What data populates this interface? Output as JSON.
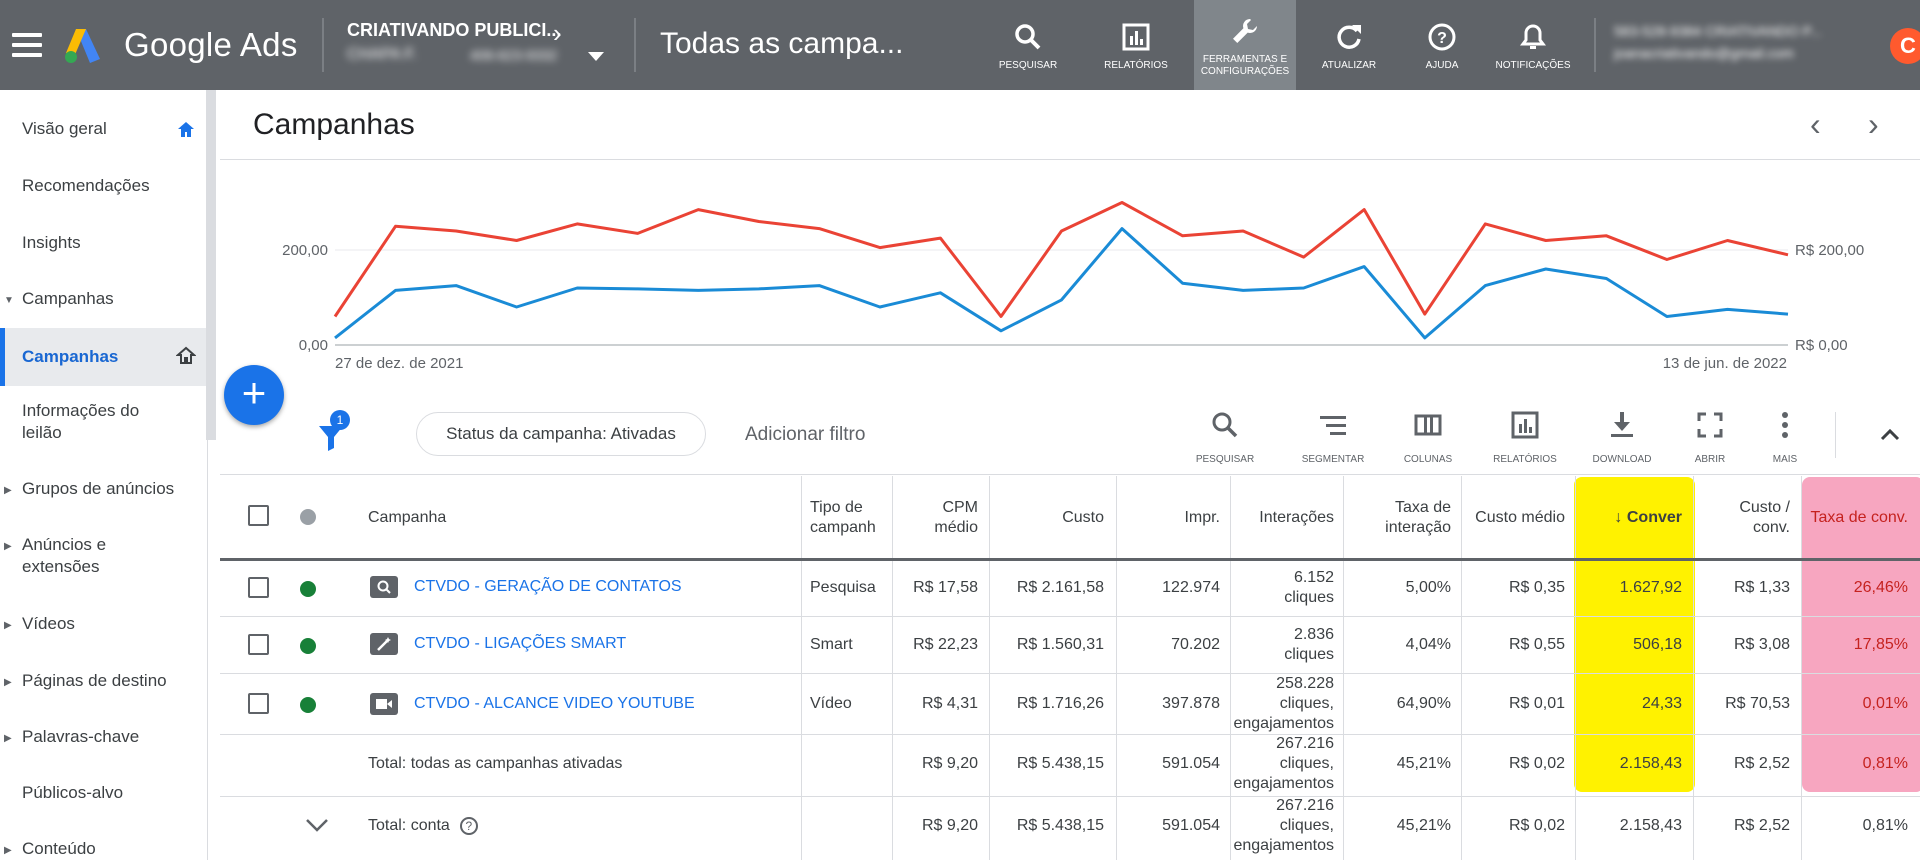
{
  "app": {
    "brand": "Google Ads",
    "page_heading": "Todas as campa..."
  },
  "account": {
    "name": "CRIATIVANDO PUBLICI...",
    "sub": "CHAPA F.",
    "sub_id": "406-623-9332"
  },
  "toolbar": [
    {
      "label": "PESQUISAR",
      "icon": "search-icon"
    },
    {
      "label": "RELATÓRIOS",
      "icon": "reports-icon"
    },
    {
      "label": "FERRAMENTAS E CONFIGURAÇÕES",
      "icon": "wrench-icon",
      "active": true
    },
    {
      "label": "ATUALIZAR",
      "icon": "refresh-icon"
    },
    {
      "label": "AJUDA",
      "icon": "help-icon"
    },
    {
      "label": "NOTIFICAÇÕES",
      "icon": "bell-icon"
    }
  ],
  "user": {
    "line1": "583-528-9384 CRIATIVANDO P...",
    "line2": "joanacriativando@gmail.com",
    "avatar_letter": "C"
  },
  "sidebar": {
    "items": [
      {
        "label": "Visão geral",
        "icon": "home-icon"
      },
      {
        "label": "Recomendações"
      },
      {
        "label": "Insights"
      },
      {
        "label": "Campanhas",
        "expanded": true
      },
      {
        "label": "Campanhas",
        "active": true,
        "icon": "home-icon"
      },
      {
        "label": "Informações do leilão"
      },
      {
        "label": "Grupos de anúncios",
        "expandable": true
      },
      {
        "label": "Anúncios e extensões",
        "expandable": true
      },
      {
        "label": "Vídeos",
        "expandable": true
      },
      {
        "label": "Páginas de destino",
        "expandable": true
      },
      {
        "label": "Palavras-chave",
        "expandable": true
      },
      {
        "label": "Públicos-alvo"
      },
      {
        "label": "Conteúdo",
        "expandable": true
      }
    ]
  },
  "content": {
    "title": "Campanhas",
    "prev_label": "‹",
    "next_label": "›"
  },
  "chart_data": {
    "type": "line",
    "x_start_label": "27 de dez. de 2021",
    "x_end_label": "13 de jun. de 2022",
    "y_left_ticks": [
      "0,00",
      "200,00"
    ],
    "y_right_ticks": [
      "R$ 0,00",
      "R$ 200,00"
    ],
    "ylim": [
      0,
      400
    ],
    "series": [
      {
        "color": "#ea4335",
        "values": [
          60,
          250,
          240,
          220,
          255,
          235,
          285,
          260,
          245,
          205,
          225,
          60,
          240,
          300,
          230,
          240,
          185,
          285,
          65,
          255,
          220,
          230,
          180,
          220,
          190
        ]
      },
      {
        "color": "#1a8bd6",
        "values": [
          15,
          115,
          125,
          80,
          120,
          118,
          115,
          118,
          125,
          80,
          110,
          30,
          95,
          245,
          130,
          115,
          120,
          165,
          15,
          125,
          160,
          140,
          60,
          75,
          65
        ]
      }
    ]
  },
  "filters": {
    "badge": "1",
    "chip": "Status da campanha: Ativadas",
    "add": "Adicionar filtro"
  },
  "table_tools": [
    {
      "label": "PESQUISAR",
      "icon": "search-icon"
    },
    {
      "label": "SEGMENTAR",
      "icon": "segment-icon"
    },
    {
      "label": "COLUNAS",
      "icon": "columns-icon"
    },
    {
      "label": "RELATÓRIOS",
      "icon": "reports-icon"
    },
    {
      "label": "DOWNLOAD",
      "icon": "download-icon"
    },
    {
      "label": "ABRIR",
      "icon": "expand-icon"
    },
    {
      "label": "MAIS",
      "icon": "more-icon"
    }
  ],
  "table": {
    "headers": {
      "campaign": "Campanha",
      "type": "Tipo de campanh",
      "cpm": "CPM médio",
      "cost": "Custo",
      "impr": "Impr.",
      "interactions": "Interações",
      "interaction_rate": "Taxa de interação",
      "avg_cost": "Custo médio",
      "conversions": "↓ Conver",
      "cost_conv": "Custo / conv.",
      "conv_rate": "Taxa de conv."
    },
    "rows": [
      {
        "campaign": "CTVDO - GERAÇÃO DE CONTATOS",
        "icon": "search-icon",
        "type": "Pesquisa",
        "cpm": "R$ 17,58",
        "cost": "R$ 2.161,58",
        "impr": "122.974",
        "interactions": "6.152 cliques",
        "interaction_rate": "5,00%",
        "avg_cost": "R$ 0,35",
        "conversions": "1.627,92",
        "cost_conv": "R$ 1,33",
        "conv_rate": "26,46%"
      },
      {
        "campaign": "CTVDO - LIGAÇÕES SMART",
        "icon": "smart-wand-icon",
        "type": "Smart",
        "cpm": "R$ 22,23",
        "cost": "R$ 1.560,31",
        "impr": "70.202",
        "interactions": "2.836 cliques",
        "interaction_rate": "4,04%",
        "avg_cost": "R$ 0,55",
        "conversions": "506,18",
        "cost_conv": "R$ 3,08",
        "conv_rate": "17,85%"
      },
      {
        "campaign": "CTVDO - ALCANCE VIDEO YOUTUBE",
        "icon": "video-camera-icon",
        "type": "Vídeo",
        "cpm": "R$ 4,31",
        "cost": "R$ 1.716,26",
        "impr": "397.878",
        "interactions": "258.228 cliques, engajamentos",
        "interaction_rate": "64,90%",
        "avg_cost": "R$ 0,01",
        "conversions": "24,33",
        "cost_conv": "R$ 70,53",
        "conv_rate": "0,01%"
      }
    ],
    "totals": [
      {
        "label": "Total: todas as campanhas ativadas",
        "cpm": "R$ 9,20",
        "cost": "R$ 5.438,15",
        "impr": "591.054",
        "interactions": "267.216 cliques, engajamentos",
        "interaction_rate": "45,21%",
        "avg_cost": "R$ 0,02",
        "conversions": "2.158,43",
        "cost_conv": "R$ 2,52",
        "conv_rate": "0,81%"
      },
      {
        "label": "Total: conta",
        "cpm": "R$ 9,20",
        "cost": "R$ 5.438,15",
        "impr": "591.054",
        "interactions": "267.216 cliques, engajamentos",
        "interaction_rate": "45,21%",
        "avg_cost": "R$ 0,02",
        "conversions": "2.158,43",
        "cost_conv": "R$ 2,52",
        "conv_rate": "0,81%"
      }
    ]
  },
  "colors": {
    "topbar": "#5f6368",
    "accent": "#1a73e8",
    "enabled_dot": "#188038",
    "highlight_conversions": "#fff200",
    "highlight_conv_rate": "#f7a6c0"
  }
}
